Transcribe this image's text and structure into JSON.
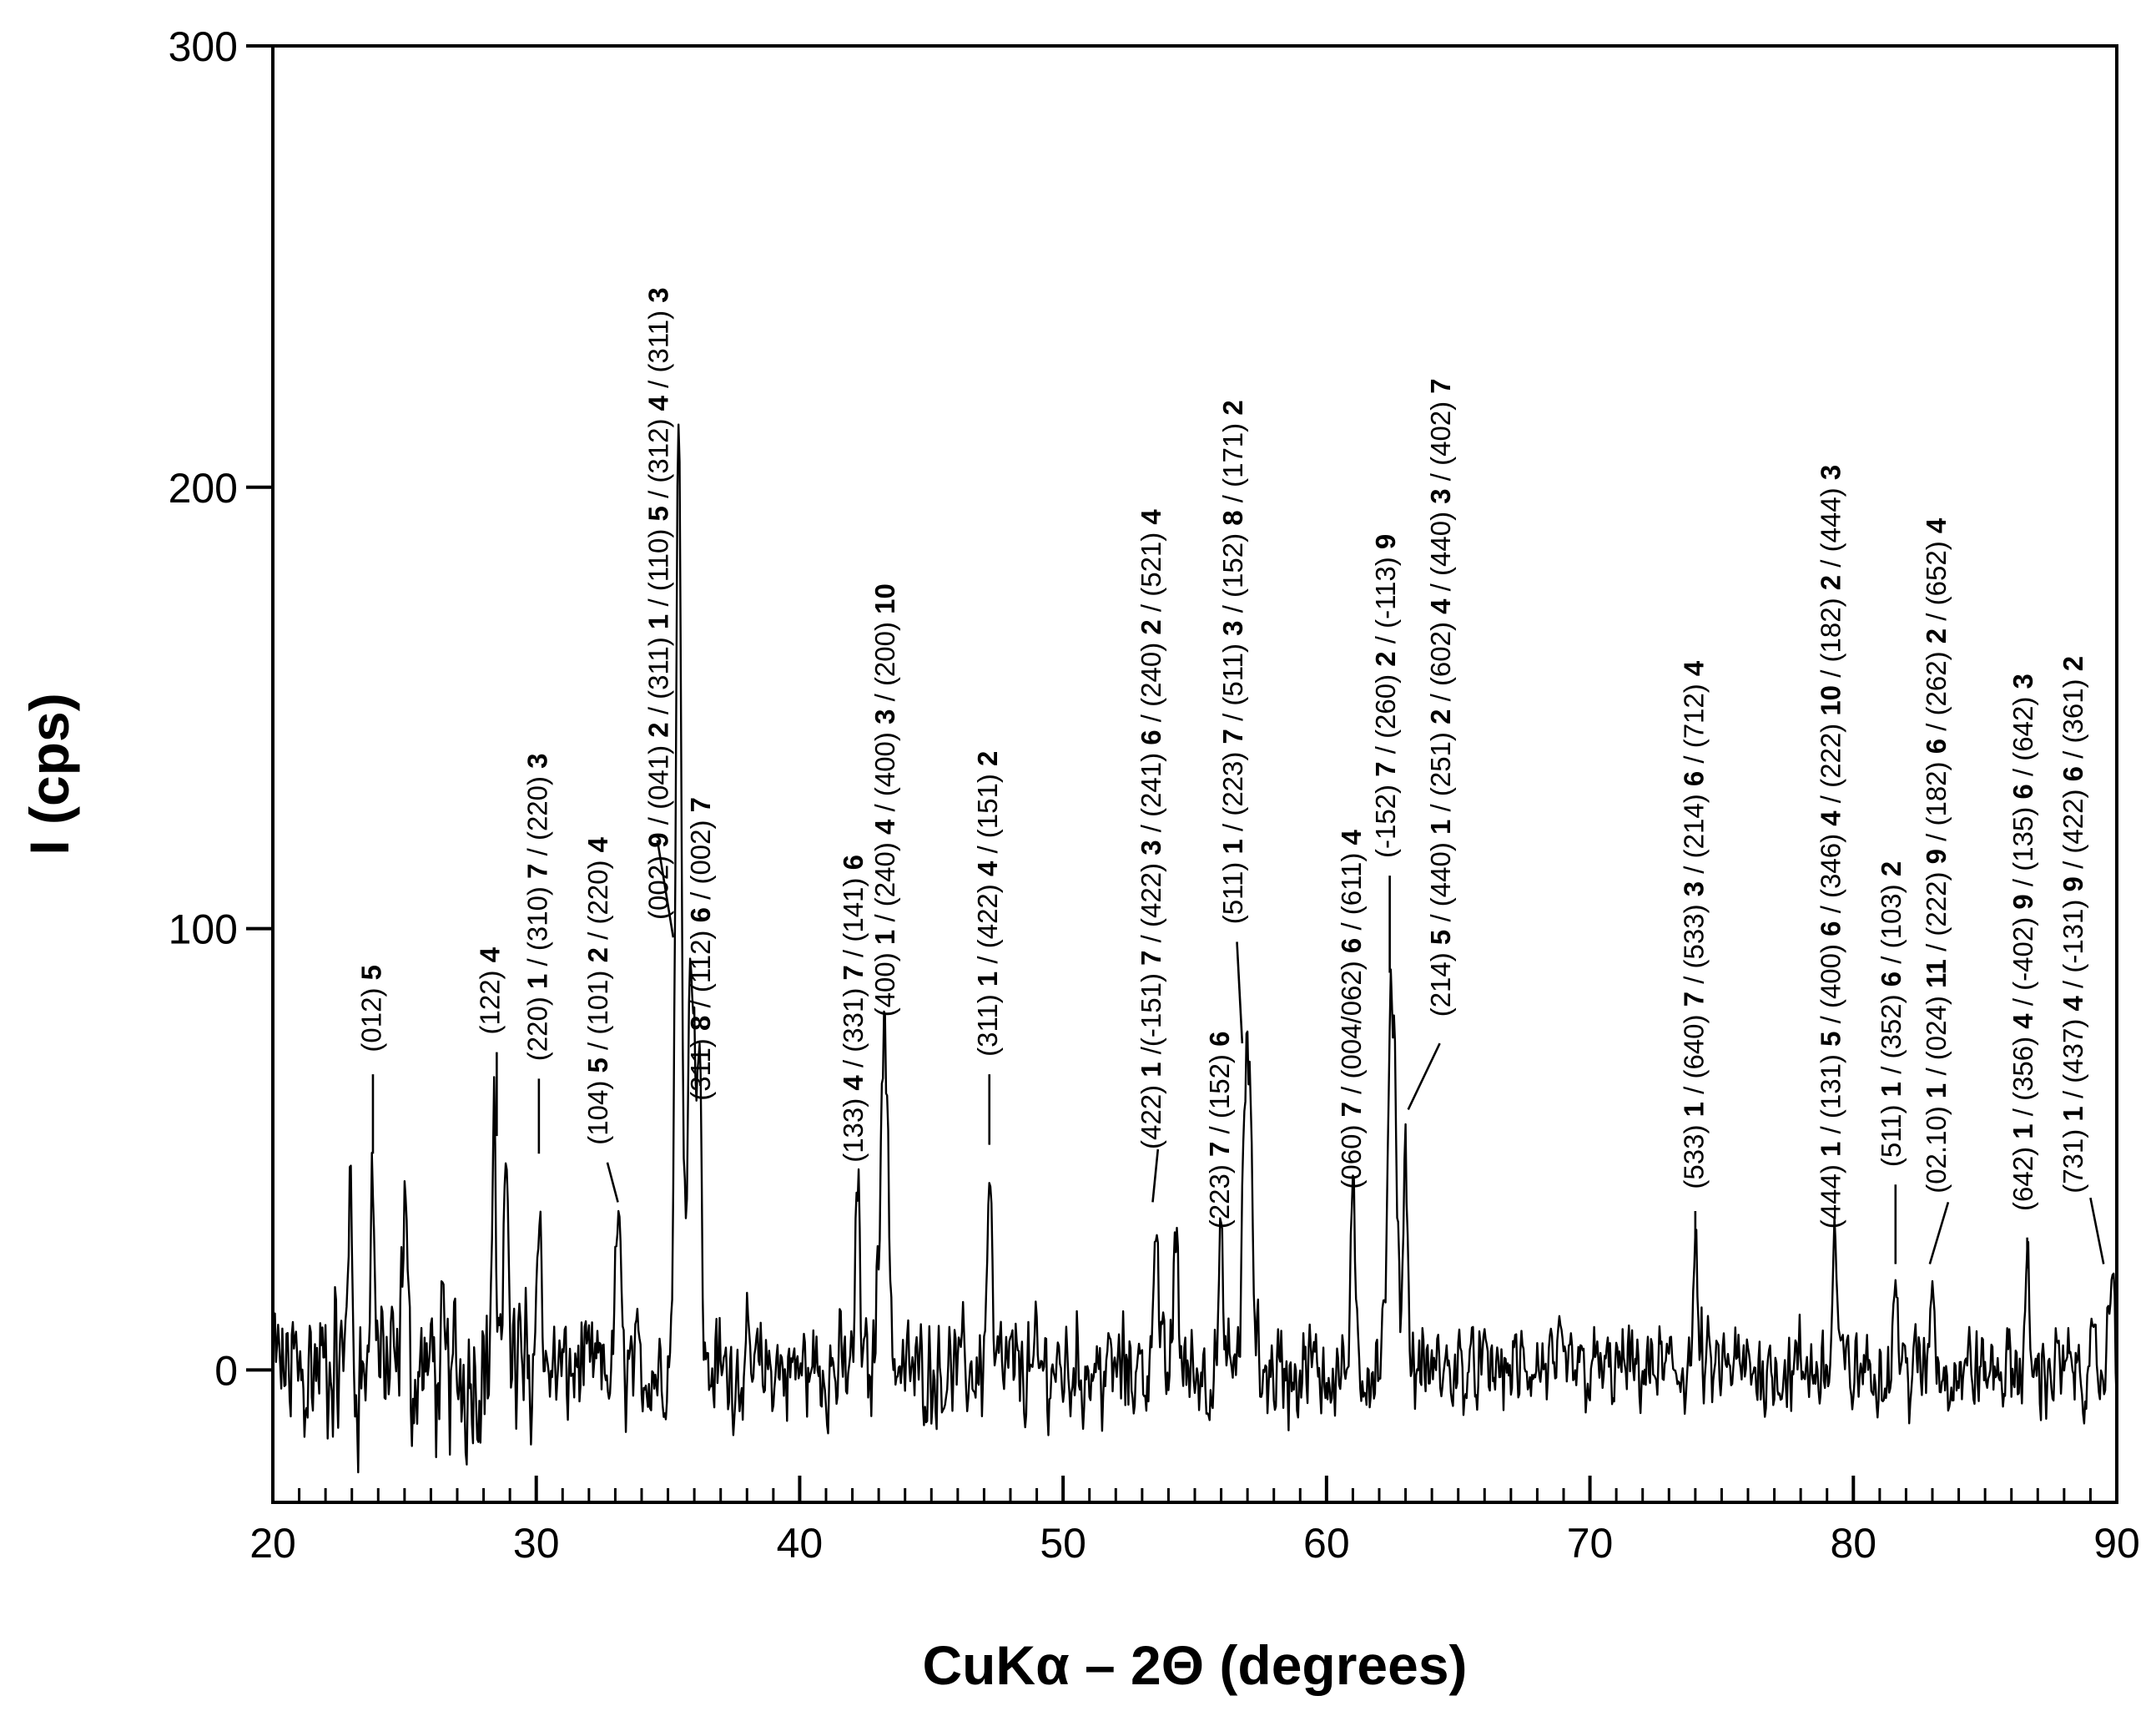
{
  "chart_data": {
    "type": "line",
    "xlabel": "CuKα – 2Θ (degrees)",
    "ylabel": "I (cps)",
    "xlim": [
      20,
      90
    ],
    "ylim": [
      -30,
      300
    ],
    "xticks": [
      20,
      30,
      40,
      50,
      60,
      70,
      80,
      90
    ],
    "yticks": [
      0,
      100,
      200,
      300
    ],
    "xticks_minor_step": 1,
    "grid": false,
    "legend": "none",
    "line_color": "#000000",
    "noise_amplitude": 13,
    "baseline": 0,
    "peaks": [
      {
        "x": 23.8,
        "y": 43
      },
      {
        "x": 25.0,
        "y": 40
      },
      {
        "x": 22.9,
        "y": 41
      },
      {
        "x": 28.4,
        "y": 52
      },
      {
        "x": 28.9,
        "y": 48
      },
      {
        "x": 30.1,
        "y": 40
      },
      {
        "x": 33.1,
        "y": 37
      },
      {
        "x": 35.4,
        "y": 208
      },
      {
        "x": 35.9,
        "y": 95
      },
      {
        "x": 36.2,
        "y": 55
      },
      {
        "x": 42.2,
        "y": 42
      },
      {
        "x": 43.2,
        "y": 78
      },
      {
        "x": 47.2,
        "y": 44
      },
      {
        "x": 53.5,
        "y": 38
      },
      {
        "x": 54.3,
        "y": 33
      },
      {
        "x": 56.0,
        "y": 26
      },
      {
        "x": 57.0,
        "y": 74
      },
      {
        "x": 61.0,
        "y": 36
      },
      {
        "x": 62.5,
        "y": 86
      },
      {
        "x": 63.0,
        "y": 50
      },
      {
        "x": 74.0,
        "y": 26
      },
      {
        "x": 79.3,
        "y": 30
      },
      {
        "x": 81.6,
        "y": 22
      },
      {
        "x": 83.0,
        "y": 22
      },
      {
        "x": 86.6,
        "y": 20
      },
      {
        "x": 89.8,
        "y": 25
      }
    ],
    "annotations": [
      {
        "x": 23.8,
        "text": [
          [
            "(012) ",
            0
          ],
          [
            "5",
            1
          ]
        ],
        "line": [
          [
            23.8,
            49
          ],
          [
            23.8,
            67
          ]
        ],
        "label_at": [
          24.1,
          72
        ]
      },
      {
        "x": 28.5,
        "text": [
          [
            "(122) ",
            0
          ],
          [
            "4",
            1
          ]
        ],
        "line": [
          [
            28.5,
            53
          ],
          [
            28.5,
            72
          ]
        ],
        "label_at": [
          28.6,
          76
        ]
      },
      {
        "x": 30.1,
        "text": [
          [
            "(220) ",
            0
          ],
          [
            "1",
            1
          ],
          [
            " / (310) ",
            0
          ],
          [
            "7",
            1
          ],
          [
            " / (220) ",
            0
          ],
          [
            "3",
            1
          ]
        ],
        "line": [
          [
            30.1,
            49
          ],
          [
            30.1,
            66
          ]
        ],
        "label_at": [
          30.4,
          70
        ]
      },
      {
        "x": 33.0,
        "text": [
          [
            "(104) ",
            0
          ],
          [
            "5",
            1
          ],
          [
            " /  (101) ",
            0
          ],
          [
            "2",
            1
          ],
          [
            " / (220) ",
            0
          ],
          [
            "4",
            1
          ]
        ],
        "line": [
          [
            32.7,
            47
          ],
          [
            33.1,
            38
          ]
        ],
        "label_at": [
          32.7,
          51
        ]
      },
      {
        "x": 35.2,
        "text": [
          [
            "(002) ",
            0
          ],
          [
            "9",
            1
          ],
          [
            " / (041) ",
            0
          ],
          [
            "2",
            1
          ],
          [
            " / (311) ",
            0
          ],
          [
            "1",
            1
          ],
          [
            " / (110) ",
            0
          ],
          [
            "5",
            1
          ],
          [
            " / (312) ",
            0
          ],
          [
            "4",
            1
          ],
          [
            " / (311) ",
            0
          ],
          [
            "3",
            1
          ]
        ],
        "line": [
          [
            34.6,
            120
          ],
          [
            35.2,
            98
          ]
        ],
        "label_at": [
          35.0,
          102
        ]
      },
      {
        "x": 36.5,
        "text": [
          [
            "(311) ",
            0
          ],
          [
            "8",
            1
          ],
          [
            " /  (112) ",
            0
          ],
          [
            "6",
            1
          ],
          [
            " / (002) ",
            0
          ],
          [
            "7",
            1
          ]
        ],
        "line": null,
        "label_at": [
          36.6,
          61
        ]
      },
      {
        "x": 42.2,
        "text": [
          [
            "(133) ",
            0
          ],
          [
            "4",
            1
          ],
          [
            " / (331) ",
            0
          ],
          [
            "7",
            1
          ],
          [
            " / (141) ",
            0
          ],
          [
            "6",
            1
          ]
        ],
        "line": null,
        "label_at": [
          42.4,
          47
        ]
      },
      {
        "x": 43.6,
        "text": [
          [
            "(400) ",
            0
          ],
          [
            "1",
            1
          ],
          [
            " / (240) ",
            0
          ],
          [
            "4",
            1
          ],
          [
            " / (400) ",
            0
          ],
          [
            "3",
            1
          ],
          [
            " / (200) ",
            0
          ],
          [
            "10",
            1
          ]
        ],
        "line": null,
        "label_at": [
          43.6,
          80
        ]
      },
      {
        "x": 47.2,
        "text": [
          [
            "(311) ",
            0
          ],
          [
            "1",
            1
          ],
          [
            " / (422) ",
            0
          ],
          [
            "4",
            1
          ],
          [
            " / (151) ",
            0
          ],
          [
            "2",
            1
          ]
        ],
        "line": [
          [
            47.2,
            51
          ],
          [
            47.2,
            67
          ]
        ],
        "label_at": [
          47.5,
          71
        ]
      },
      {
        "x": 53.6,
        "text": [
          [
            "(422) ",
            0
          ],
          [
            "1",
            1
          ],
          [
            " /(-151) ",
            0
          ],
          [
            "7",
            1
          ],
          [
            " / (422) ",
            0
          ],
          [
            "3",
            1
          ],
          [
            " / (241) ",
            0
          ],
          [
            "6",
            1
          ],
          [
            " / (240) ",
            0
          ],
          [
            "2",
            1
          ],
          [
            " / (521) ",
            0
          ],
          [
            "4",
            1
          ]
        ],
        "line": [
          [
            53.4,
            38
          ],
          [
            53.6,
            50
          ]
        ],
        "label_at": [
          53.7,
          50
        ]
      },
      {
        "x": 56.0,
        "text": [
          [
            "(223) ",
            0
          ],
          [
            "7",
            1
          ],
          [
            " / (152) ",
            0
          ],
          [
            "6",
            1
          ]
        ],
        "line": null,
        "label_at": [
          56.3,
          32
        ]
      },
      {
        "x": 57.0,
        "text": [
          [
            "(511) ",
            0
          ],
          [
            "1",
            1
          ],
          [
            " / (223) ",
            0
          ],
          [
            "7",
            1
          ],
          [
            " / (511) ",
            0
          ],
          [
            "3",
            1
          ],
          [
            " / (152) ",
            0
          ],
          [
            "8",
            1
          ],
          [
            " / (171) ",
            0
          ],
          [
            "2",
            1
          ]
        ],
        "line": [
          [
            56.8,
            74
          ],
          [
            56.6,
            97
          ]
        ],
        "label_at": [
          56.8,
          101
        ]
      },
      {
        "x": 61.2,
        "text": [
          [
            "(060) ",
            0
          ],
          [
            "7",
            1
          ],
          [
            " / (004/062) ",
            0
          ],
          [
            "6",
            1
          ],
          [
            " / (611) ",
            0
          ],
          [
            "4",
            1
          ]
        ],
        "line": null,
        "label_at": [
          61.3,
          41
        ]
      },
      {
        "x": 62.4,
        "text": [
          [
            "(-152) ",
            0
          ],
          [
            "7",
            1
          ],
          [
            " / (260) ",
            0
          ],
          [
            "2",
            1
          ],
          [
            " / (-113) ",
            0
          ],
          [
            "9",
            1
          ]
        ],
        "line": [
          [
            62.4,
            90
          ],
          [
            62.4,
            112
          ]
        ],
        "label_at": [
          62.6,
          116
        ]
      },
      {
        "x": 64.6,
        "text": [
          [
            "(214) ",
            0
          ],
          [
            "5",
            1
          ],
          [
            " / (440) ",
            0
          ],
          [
            "1",
            1
          ],
          [
            " / (251) ",
            0
          ],
          [
            "2",
            1
          ],
          [
            " / (602) ",
            0
          ],
          [
            "4",
            1
          ],
          [
            " / (440) ",
            0
          ],
          [
            "3",
            1
          ],
          [
            " / (402) ",
            0
          ],
          [
            "7",
            1
          ]
        ],
        "line": [
          [
            64.3,
            74
          ],
          [
            63.1,
            59
          ]
        ],
        "label_at": [
          64.7,
          80
        ]
      },
      {
        "x": 74.0,
        "text": [
          [
            "(533) ",
            0
          ],
          [
            "1",
            1
          ],
          [
            " / (640) ",
            0
          ],
          [
            "7",
            1
          ],
          [
            " / (533) ",
            0
          ],
          [
            "3",
            1
          ],
          [
            " / (214) ",
            0
          ],
          [
            "6",
            1
          ],
          [
            " / (712) ",
            0
          ],
          [
            "4",
            1
          ]
        ],
        "line": [
          [
            74.0,
            27
          ],
          [
            74.0,
            36
          ]
        ],
        "label_at": [
          74.3,
          41
        ]
      },
      {
        "x": 79.3,
        "text": [
          [
            "(444) ",
            0
          ],
          [
            "1",
            1
          ],
          [
            " / (131) ",
            0
          ],
          [
            "5",
            1
          ],
          [
            " / (400) ",
            0
          ],
          [
            "6",
            1
          ],
          [
            " / (346) ",
            0
          ],
          [
            "4",
            1
          ],
          [
            " / (222) ",
            0
          ],
          [
            "10",
            1
          ],
          [
            " / (182) ",
            0
          ],
          [
            "2",
            1
          ],
          [
            " / (444) ",
            0
          ],
          [
            "3",
            1
          ]
        ],
        "line": null,
        "label_at": [
          79.5,
          32
        ]
      },
      {
        "x": 81.6,
        "text": [
          [
            "(511) ",
            0
          ],
          [
            "1",
            1
          ],
          [
            " / (352) ",
            0
          ],
          [
            "6",
            1
          ],
          [
            " / (103) ",
            0
          ],
          [
            "2",
            1
          ]
        ],
        "line": [
          [
            81.6,
            24
          ],
          [
            81.6,
            42
          ]
        ],
        "label_at": [
          81.8,
          46
        ]
      },
      {
        "x": 83.3,
        "text": [
          [
            "(02.10) ",
            0
          ],
          [
            "1",
            1
          ],
          [
            " /  (024) ",
            0
          ],
          [
            "11",
            1
          ],
          [
            " / (222) ",
            0
          ],
          [
            "9",
            1
          ],
          [
            " / (182) ",
            0
          ],
          [
            "6",
            1
          ],
          [
            " / (262) ",
            0
          ],
          [
            "2",
            1
          ],
          [
            " / (652) ",
            0
          ],
          [
            "4",
            1
          ]
        ],
        "line": [
          [
            83.6,
            38
          ],
          [
            82.9,
            24
          ]
        ],
        "label_at": [
          83.5,
          40
        ]
      },
      {
        "x": 86.6,
        "text": [
          [
            "(642) ",
            0
          ],
          [
            "1",
            1
          ],
          [
            " / (356) ",
            0
          ],
          [
            "4",
            1
          ],
          [
            " / (-402) ",
            0
          ],
          [
            "9",
            1
          ],
          [
            " / (135) ",
            0
          ],
          [
            "6",
            1
          ],
          [
            " / (642) ",
            0
          ],
          [
            "3",
            1
          ]
        ],
        "line": [
          [
            86.6,
            23
          ],
          [
            86.6,
            30
          ]
        ],
        "label_at": [
          86.8,
          36
        ]
      },
      {
        "x": 88.6,
        "text": [
          [
            "(731) ",
            0
          ],
          [
            "1",
            1
          ],
          [
            " / (437) ",
            0
          ],
          [
            "4",
            1
          ],
          [
            " / (-131) ",
            0
          ],
          [
            "9",
            1
          ],
          [
            " / (422) ",
            0
          ],
          [
            "6",
            1
          ],
          [
            " / (361) ",
            0
          ],
          [
            "2",
            1
          ]
        ],
        "line": [
          [
            89.5,
            24
          ],
          [
            89.0,
            39
          ]
        ],
        "label_at": [
          88.7,
          40
        ]
      }
    ]
  }
}
